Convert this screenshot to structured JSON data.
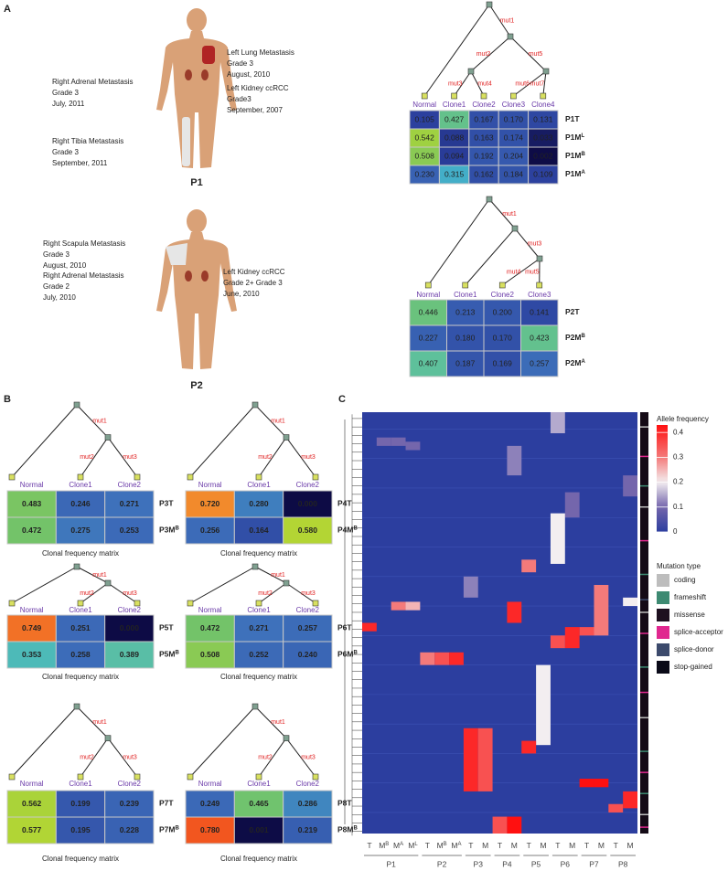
{
  "panel_a": {
    "label": "A",
    "patients": [
      {
        "name": "P1",
        "sites": [
          [
            "Left  Lung Metastasis",
            "Grade 3",
            "August, 2010"
          ],
          [
            "Left Kidney ccRCC",
            "Grade3",
            "September, 2007"
          ],
          [
            "Right Adrenal Metastasis",
            "Grade 3",
            "July, 2011"
          ],
          [
            "Right Tibia Metastasis",
            "Grade 3",
            "September, 2011"
          ]
        ]
      },
      {
        "name": "P2",
        "sites": [
          [
            "Right  Scapula Metastasis",
            "Grade 3",
            "August, 2010"
          ],
          [
            "Right Adrenal Metastasis",
            "Grade 2",
            "July, 2010"
          ],
          [
            "Left Kidney ccRCC",
            "Grade 2+ Grade 3",
            "June, 2010"
          ]
        ]
      }
    ],
    "trees": [
      {
        "mutations": [
          "mut1",
          "mut2",
          "mut3",
          "mut4",
          "mut5",
          "mut6",
          "mut7"
        ],
        "clones": [
          "Normal",
          "Clone1",
          "Clone2",
          "Clone3",
          "Clone4"
        ],
        "rows": [
          {
            "label": "P1T",
            "values": [
              "0.105",
              "0.427",
              "0.167",
              "0.170",
              "0.131"
            ]
          },
          {
            "label": "P1M",
            "sup": "L",
            "values": [
              "0.542",
              "0.088",
              "0.163",
              "0.174",
              "0.033"
            ]
          },
          {
            "label": "P1M",
            "sup": "B",
            "values": [
              "0.508",
              "0.094",
              "0.192",
              "0.204",
              "0.002"
            ]
          },
          {
            "label": "P1M",
            "sup": "A",
            "values": [
              "0.230",
              "0.315",
              "0.162",
              "0.184",
              "0.109"
            ]
          }
        ]
      },
      {
        "mutations": [
          "mut1",
          "mut3",
          "mut4",
          "mut5"
        ],
        "clones": [
          "Normal",
          "Clone1",
          "Clone2",
          "Clone3"
        ],
        "rows": [
          {
            "label": "P2T",
            "values": [
              "0.446",
              "0.213",
              "0.200",
              "0.141"
            ]
          },
          {
            "label": "P2M",
            "sup": "B",
            "values": [
              "0.227",
              "0.180",
              "0.170",
              "0.423"
            ]
          },
          {
            "label": "P2M",
            "sup": "A",
            "values": [
              "0.407",
              "0.187",
              "0.169",
              "0.257"
            ]
          }
        ]
      }
    ]
  },
  "panel_b": {
    "label": "B",
    "caption": "Clonal frequency matrix",
    "trees": [
      {
        "mutations": [
          "mut1",
          "mut2",
          "mut3"
        ],
        "clones": [
          "Normal",
          "Clone1",
          "Clone2"
        ],
        "rows": [
          {
            "label": "P3T",
            "values": [
              "0.483",
              "0.246",
              "0.271"
            ]
          },
          {
            "label": "P3M",
            "sup": "B",
            "values": [
              "0.472",
              "0.275",
              "0.253"
            ]
          }
        ]
      },
      {
        "mutations": [
          "mut1",
          "mut2",
          "mut3"
        ],
        "clones": [
          "Normal",
          "Clone1",
          "Clone2"
        ],
        "rows": [
          {
            "label": "P4T",
            "values": [
              "0.720",
              "0.280",
              "0.000"
            ]
          },
          {
            "label": "P4M",
            "sup": "B",
            "values": [
              "0.256",
              "0.164",
              "0.580"
            ]
          }
        ]
      },
      {
        "mutations": [
          "mut1",
          "mut2",
          "mut3"
        ],
        "clones": [
          "Normal",
          "Clone1",
          "Clone2"
        ],
        "rows": [
          {
            "label": "P5T",
            "values": [
              "0.749",
              "0.251",
              "0.000"
            ]
          },
          {
            "label": "P5M",
            "sup": "B",
            "values": [
              "0.353",
              "0.258",
              "0.389"
            ]
          }
        ]
      },
      {
        "mutations": [
          "mut1",
          "mut2",
          "mut3"
        ],
        "clones": [
          "Normal",
          "Clone1",
          "Clone2"
        ],
        "rows": [
          {
            "label": "P6T",
            "values": [
              "0.472",
              "0.271",
              "0.257"
            ]
          },
          {
            "label": "P6M",
            "sup": "B",
            "values": [
              "0.508",
              "0.252",
              "0.240"
            ]
          }
        ]
      },
      {
        "mutations": [
          "mut1",
          "mut2",
          "mut3"
        ],
        "clones": [
          "Normal",
          "Clone1",
          "Clone2"
        ],
        "rows": [
          {
            "label": "P7T",
            "values": [
              "0.562",
              "0.199",
              "0.239"
            ]
          },
          {
            "label": "P7M",
            "sup": "B",
            "values": [
              "0.577",
              "0.195",
              "0.228"
            ]
          }
        ]
      },
      {
        "mutations": [
          "mut1",
          "mut2",
          "mut3"
        ],
        "clones": [
          "Normal",
          "Clone1",
          "Clone2"
        ],
        "rows": [
          {
            "label": "P8T",
            "values": [
              "0.249",
              "0.465",
              "0.286"
            ]
          },
          {
            "label": "P8M",
            "sup": "B",
            "values": [
              "0.780",
              "0.001",
              "0.219"
            ]
          }
        ]
      }
    ]
  },
  "panel_c": {
    "label": "C",
    "groups": [
      {
        "name": "P1",
        "columns": [
          {
            "label": "T"
          },
          {
            "label": "M",
            "sup": "B"
          },
          {
            "label": "M",
            "sup": "A"
          },
          {
            "label": "M",
            "sup": "L"
          }
        ]
      },
      {
        "name": "P2",
        "columns": [
          {
            "label": "T"
          },
          {
            "label": "M",
            "sup": "B"
          },
          {
            "label": "M",
            "sup": "A"
          }
        ]
      },
      {
        "name": "P3",
        "columns": [
          {
            "label": "T"
          },
          {
            "label": "M"
          }
        ]
      },
      {
        "name": "P4",
        "columns": [
          {
            "label": "T"
          },
          {
            "label": "M"
          }
        ]
      },
      {
        "name": "P5",
        "columns": [
          {
            "label": "T"
          },
          {
            "label": "M"
          }
        ]
      },
      {
        "name": "P6",
        "columns": [
          {
            "label": "T"
          },
          {
            "label": "M"
          }
        ]
      },
      {
        "name": "P7",
        "columns": [
          {
            "label": "T"
          },
          {
            "label": "M"
          }
        ]
      },
      {
        "name": "P8",
        "columns": [
          {
            "label": "T"
          },
          {
            "label": "M"
          }
        ]
      }
    ],
    "blocks": [
      {
        "column": 13,
        "row_from": 0,
        "row_to": 4,
        "value": 0.15
      },
      {
        "column": 1,
        "row_from": 6,
        "row_to": 7,
        "value": 0.1
      },
      {
        "column": 2,
        "row_from": 6,
        "row_to": 7,
        "value": 0.1
      },
      {
        "column": 3,
        "row_from": 7,
        "row_to": 8,
        "value": 0.1
      },
      {
        "column": 10,
        "row_from": 8,
        "row_to": 14,
        "value": 0.12
      },
      {
        "column": 18,
        "row_from": 15,
        "row_to": 19,
        "value": 0.1
      },
      {
        "column": 14,
        "row_from": 19,
        "row_to": 24,
        "value": 0.1
      },
      {
        "column": 13,
        "row_from": 24,
        "row_to": 35,
        "value": 0.2
      },
      {
        "column": 11,
        "row_from": 35,
        "row_to": 37,
        "value": 0.3
      },
      {
        "column": 7,
        "row_from": 39,
        "row_to": 43,
        "value": 0.12
      },
      {
        "column": 18,
        "row_from": 44,
        "row_to": 45,
        "value": 0.2
      },
      {
        "column": 10,
        "row_from": 45,
        "row_to": 49,
        "value": 0.4
      },
      {
        "column": 2,
        "row_from": 45,
        "row_to": 46,
        "value": 0.3
      },
      {
        "column": 3,
        "row_from": 45,
        "row_to": 46,
        "value": 0.25
      },
      {
        "column": 16,
        "row_from": 41,
        "row_to": 52,
        "value": 0.3
      },
      {
        "column": 15,
        "row_from": 51,
        "row_to": 52,
        "value": 0.35
      },
      {
        "column": 0,
        "row_from": 50,
        "row_to": 51,
        "value": 0.4
      },
      {
        "column": 14,
        "row_from": 51,
        "row_to": 55,
        "value": 0.4
      },
      {
        "column": 13,
        "row_from": 53,
        "row_to": 55,
        "value": 0.35
      },
      {
        "column": 4,
        "row_from": 57,
        "row_to": 59,
        "value": 0.3
      },
      {
        "column": 5,
        "row_from": 57,
        "row_to": 59,
        "value": 0.35
      },
      {
        "column": 6,
        "row_from": 57,
        "row_to": 59,
        "value": 0.4
      },
      {
        "column": 12,
        "row_from": 60,
        "row_to": 78,
        "value": 0.2
      },
      {
        "column": 11,
        "row_from": 78,
        "row_to": 80,
        "value": 0.4
      },
      {
        "column": 7,
        "row_from": 75,
        "row_to": 89,
        "value": 0.4
      },
      {
        "column": 8,
        "row_from": 75,
        "row_to": 89,
        "value": 0.35
      },
      {
        "column": 15,
        "row_from": 87,
        "row_to": 88,
        "value": 0.43
      },
      {
        "column": 16,
        "row_from": 87,
        "row_to": 88,
        "value": 0.43
      },
      {
        "column": 18,
        "row_from": 90,
        "row_to": 93,
        "value": 0.4
      },
      {
        "column": 17,
        "row_from": 93,
        "row_to": 94,
        "value": 0.35
      },
      {
        "column": 9,
        "row_from": 96,
        "row_to": 99,
        "value": 0.35
      },
      {
        "column": 10,
        "row_from": 96,
        "row_to": 99,
        "value": 0.43
      }
    ],
    "colorbar": {
      "title": "Allele frequency",
      "lim": [
        0,
        0.43
      ],
      "ticks": [
        0.4,
        0.3,
        0.2,
        0.1,
        0
      ]
    },
    "mutation_type": {
      "title": "Mutation type",
      "types": [
        {
          "name": "coding",
          "color": "#bdbdbd"
        },
        {
          "name": "frameshift",
          "color": "#3d8a72"
        },
        {
          "name": "missense",
          "color": "#1e1020"
        },
        {
          "name": "splice-acceptor",
          "color": "#e0278f"
        },
        {
          "name": "splice-donor",
          "color": "#3c4a6c"
        },
        {
          "name": "stop-gained",
          "color": "#0a0a18"
        }
      ]
    },
    "type_marks": [
      {
        "row": 3,
        "type": 0
      },
      {
        "row": 10,
        "type": 3
      },
      {
        "row": 17,
        "type": 1
      },
      {
        "row": 22,
        "type": 0
      },
      {
        "row": 30,
        "type": 3
      },
      {
        "row": 38,
        "type": 1
      },
      {
        "row": 44,
        "type": 4
      },
      {
        "row": 47,
        "type": 0
      },
      {
        "row": 52,
        "type": 3
      },
      {
        "row": 60,
        "type": 1
      },
      {
        "row": 66,
        "type": 3
      },
      {
        "row": 72,
        "type": 0
      },
      {
        "row": 80,
        "type": 1
      },
      {
        "row": 85,
        "type": 3
      },
      {
        "row": 90,
        "type": 1
      },
      {
        "row": 95,
        "type": 0
      },
      {
        "row": 98,
        "type": 3
      }
    ]
  }
}
